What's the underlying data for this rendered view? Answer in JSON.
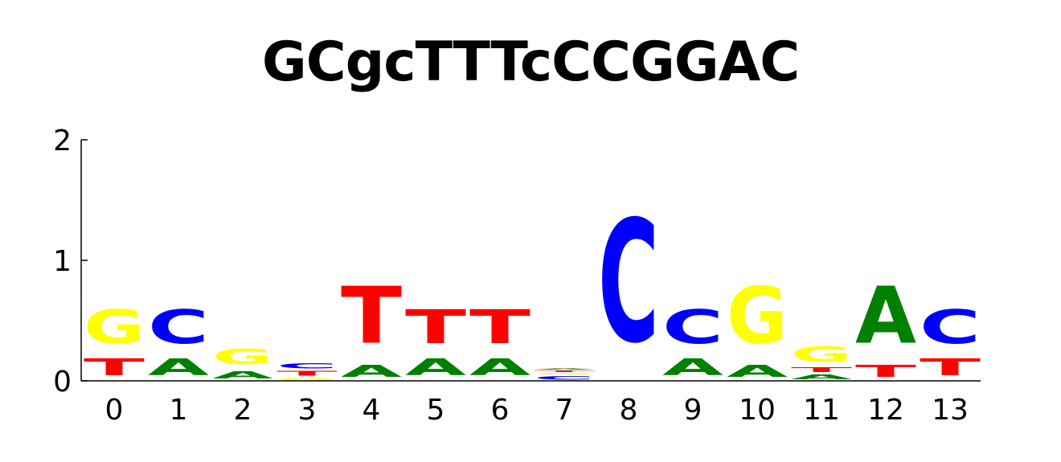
{
  "title": "GCgcTTTcCCGGAC",
  "colors": {
    "A": "#008000",
    "C": "#0000ff",
    "G": "#ffff00",
    "T": "#ff0000"
  },
  "chart_data": {
    "type": "sequence-logo",
    "title": "GCgcTTTcCCGGAC",
    "xlabel": "",
    "ylabel": "",
    "ylim": [
      0,
      2
    ],
    "yticks": [
      "0",
      "1",
      "2"
    ],
    "categories": [
      "0",
      "1",
      "2",
      "3",
      "4",
      "5",
      "6",
      "7",
      "8",
      "9",
      "10",
      "11",
      "12",
      "13"
    ],
    "positions": [
      {
        "pos": "0",
        "letters": [
          {
            "base": "T",
            "height": 0.22
          },
          {
            "base": "G",
            "height": 0.45
          }
        ]
      },
      {
        "pos": "1",
        "letters": [
          {
            "base": "A",
            "height": 0.22
          },
          {
            "base": "C",
            "height": 0.45
          }
        ]
      },
      {
        "pos": "2",
        "letters": [
          {
            "base": "A",
            "height": 0.1
          },
          {
            "base": "G",
            "height": 0.2
          }
        ]
      },
      {
        "pos": "3",
        "letters": [
          {
            "base": "G",
            "height": 0.03
          },
          {
            "base": "T",
            "height": 0.06
          },
          {
            "base": "C",
            "height": 0.07
          }
        ]
      },
      {
        "pos": "4",
        "letters": [
          {
            "base": "A",
            "height": 0.16
          },
          {
            "base": "T",
            "height": 0.76
          }
        ]
      },
      {
        "pos": "5",
        "letters": [
          {
            "base": "A",
            "height": 0.22
          },
          {
            "base": "T",
            "height": 0.45
          }
        ]
      },
      {
        "pos": "6",
        "letters": [
          {
            "base": "A",
            "height": 0.22
          },
          {
            "base": "T",
            "height": 0.45
          }
        ]
      },
      {
        "pos": "7",
        "letters": [
          {
            "base": "C",
            "height": 0.05
          },
          {
            "base": "G",
            "height": 0.02
          },
          {
            "base": "T",
            "height": 0.02
          },
          {
            "base": "A",
            "height": 0.01
          }
        ]
      },
      {
        "pos": "8",
        "letters": [
          {
            "base": "C",
            "height": 1.63
          }
        ]
      },
      {
        "pos": "9",
        "letters": [
          {
            "base": "A",
            "height": 0.22
          },
          {
            "base": "C",
            "height": 0.45
          }
        ]
      },
      {
        "pos": "10",
        "letters": [
          {
            "base": "A",
            "height": 0.16
          },
          {
            "base": "G",
            "height": 0.76
          }
        ]
      },
      {
        "pos": "11",
        "letters": [
          {
            "base": "A",
            "height": 0.06
          },
          {
            "base": "T",
            "height": 0.06
          },
          {
            "base": "G",
            "height": 0.2
          }
        ]
      },
      {
        "pos": "12",
        "letters": [
          {
            "base": "T",
            "height": 0.16
          },
          {
            "base": "A",
            "height": 0.76
          }
        ]
      },
      {
        "pos": "13",
        "letters": [
          {
            "base": "T",
            "height": 0.22
          },
          {
            "base": "C",
            "height": 0.45
          }
        ]
      }
    ]
  }
}
